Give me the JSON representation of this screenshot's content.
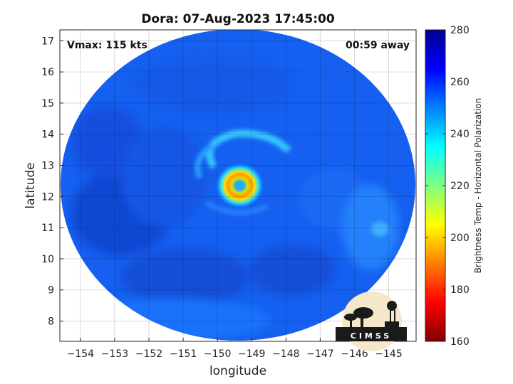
{
  "chart_data": {
    "type": "heatmap",
    "title": "Dora: 07-Aug-2023 17:45:00",
    "annotations": {
      "vmax": "Vmax: 115 kts",
      "time_away": "00:59 away"
    },
    "xlabel": "longitude",
    "ylabel": "latitude",
    "xlim": [
      -154.6,
      -144.2
    ],
    "ylim": [
      7.35,
      17.35
    ],
    "xticks": [
      -154,
      -153,
      -152,
      -151,
      -150,
      -149,
      -148,
      -147,
      -146,
      -145
    ],
    "yticks": [
      8,
      9,
      10,
      11,
      12,
      13,
      14,
      15,
      16,
      17
    ],
    "grid": true,
    "colorbar": {
      "label": "Brightness Temp - Horizontal Polarization",
      "range": [
        160,
        280
      ],
      "ticks": [
        160,
        180,
        200,
        220,
        240,
        260,
        280
      ],
      "colormap": "jet"
    },
    "swath": {
      "center_lon": -149.35,
      "center_lat": 12.35,
      "background_tb": 260
    },
    "eye": {
      "lon": -149.35,
      "lat": 12.35,
      "min_tb": 190
    },
    "logo": "CIMSS"
  }
}
